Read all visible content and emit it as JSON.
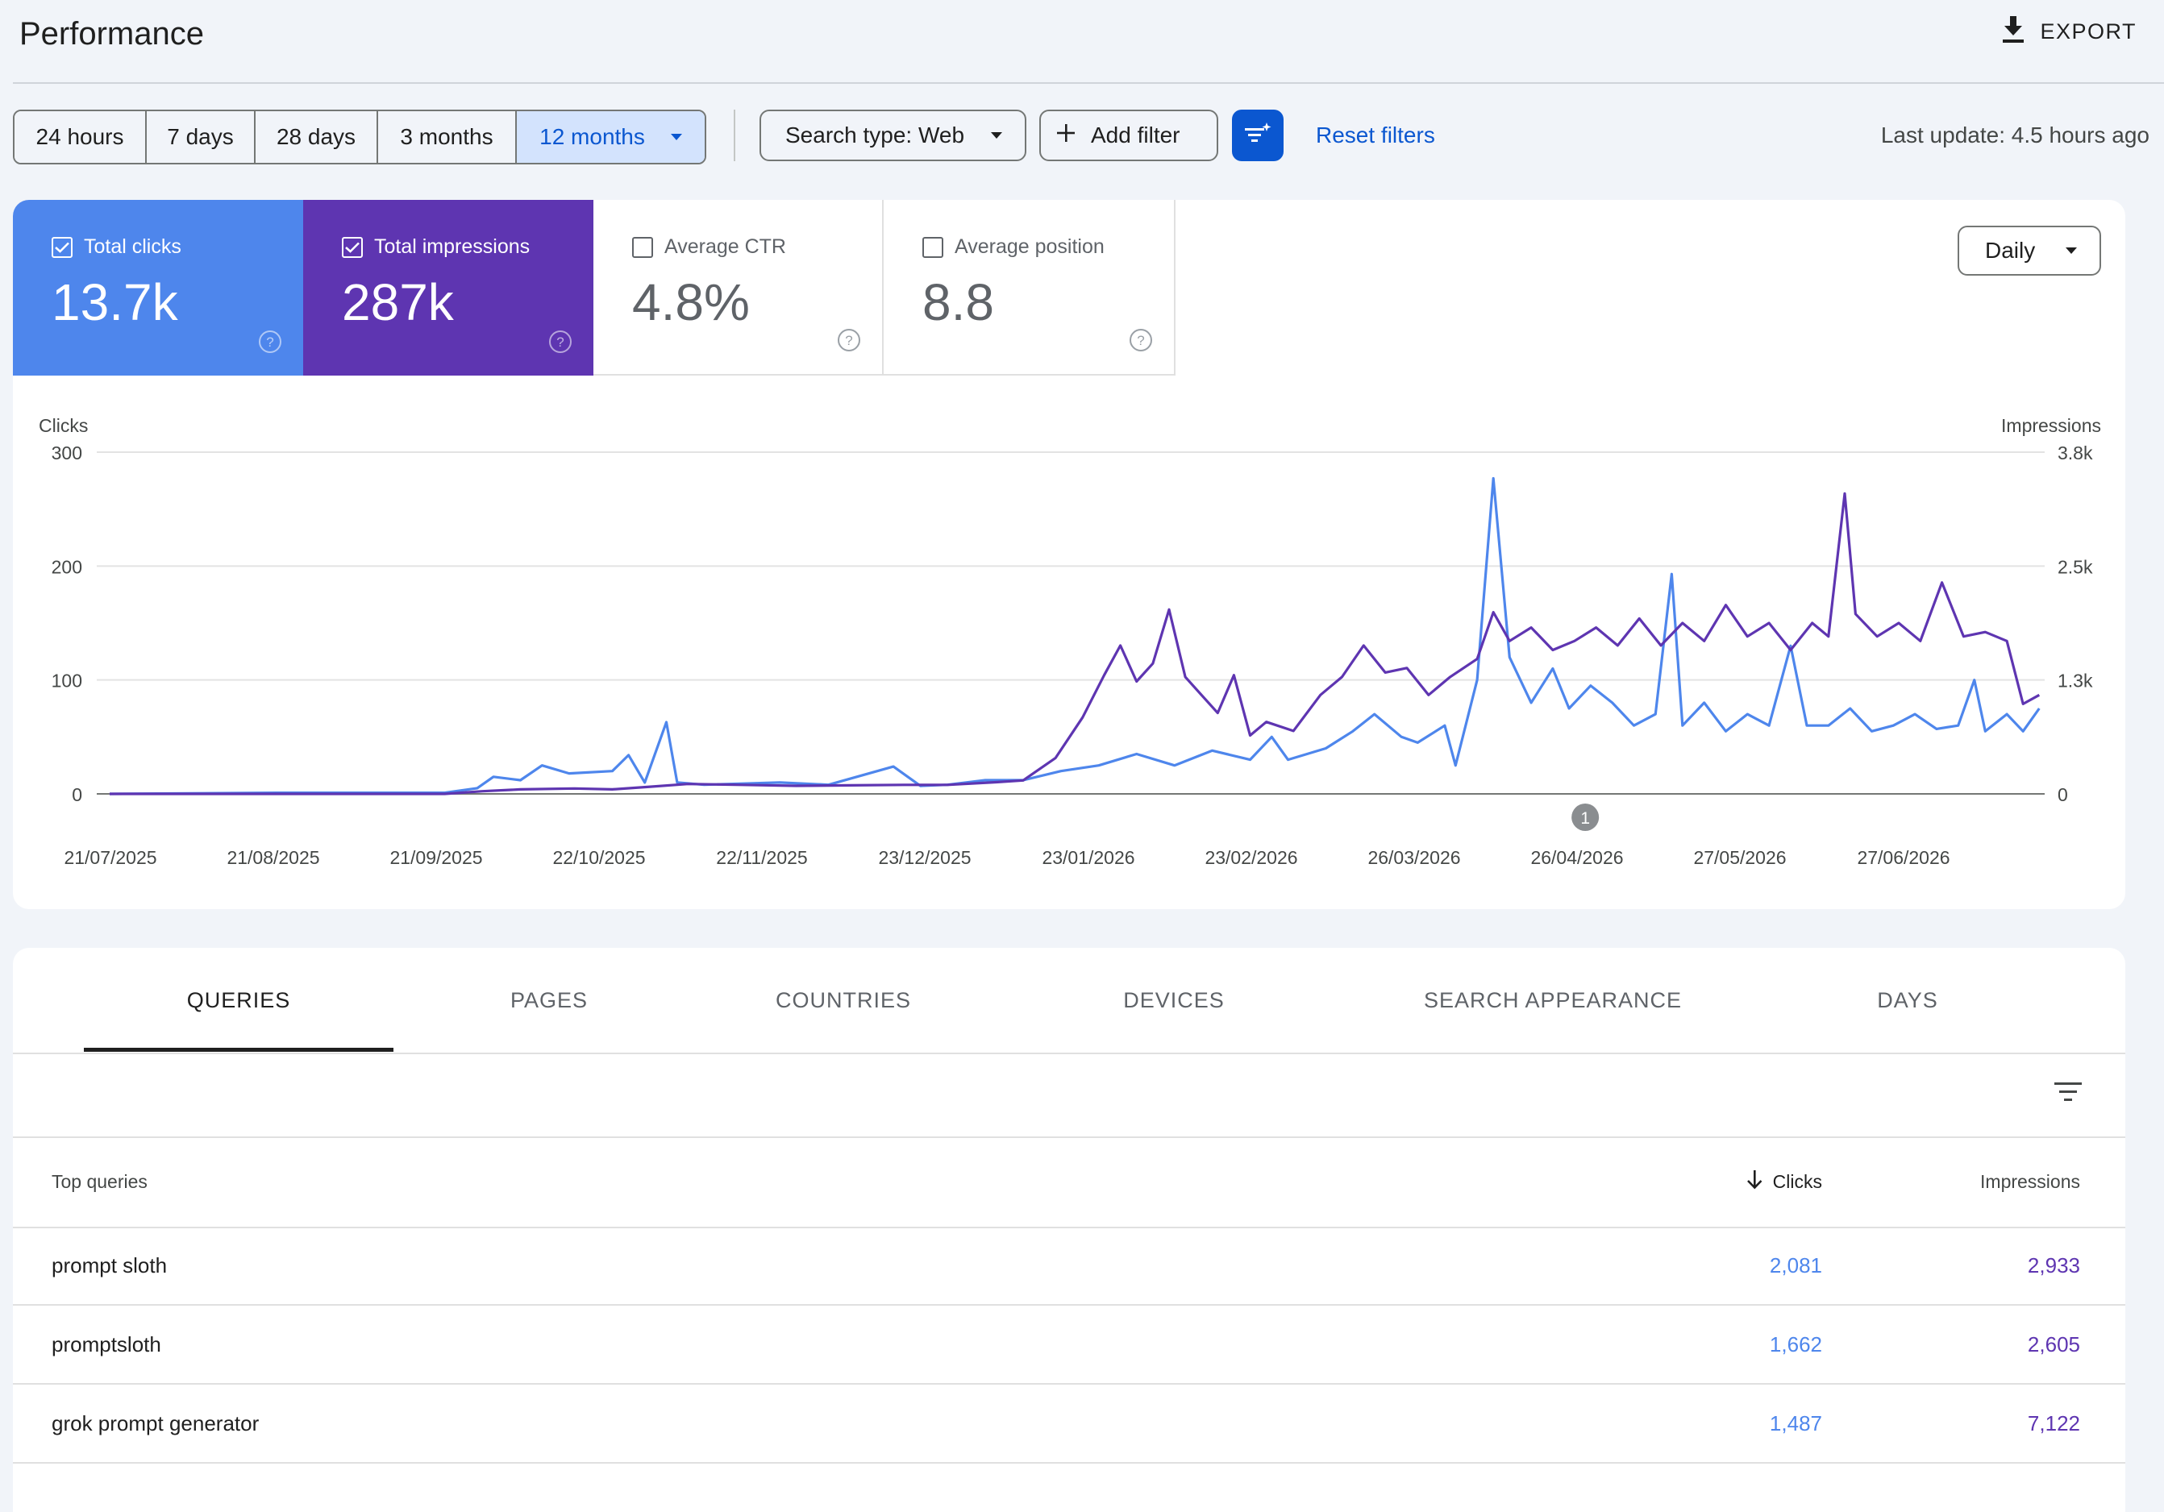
{
  "header": {
    "title": "Performance",
    "export_label": "EXPORT"
  },
  "filters": {
    "ranges": [
      {
        "label": "24 hours",
        "selected": false
      },
      {
        "label": "7 days",
        "selected": false
      },
      {
        "label": "28 days",
        "selected": false
      },
      {
        "label": "3 months",
        "selected": false
      },
      {
        "label": "12 months",
        "selected": true
      }
    ],
    "search_type": "Search type: Web",
    "add_filter": "Add filter",
    "reset": "Reset filters",
    "last_update": "Last update: 4.5 hours ago"
  },
  "metrics": {
    "clicks": {
      "label": "Total clicks",
      "value": "13.7k",
      "checked": true
    },
    "impressions": {
      "label": "Total impressions",
      "value": "287k",
      "checked": true
    },
    "ctr": {
      "label": "Average CTR",
      "value": "4.8%",
      "checked": false
    },
    "position": {
      "label": "Average position",
      "value": "8.8",
      "checked": false
    }
  },
  "granularity": "Daily",
  "colors": {
    "clicks": "#4e86ec",
    "impressions": "#5e35b1",
    "accent": "#0b57d0"
  },
  "chart_data": {
    "type": "line",
    "left_axis_label": "Clicks",
    "right_axis_label": "Impressions",
    "left_ticks": [
      "300",
      "200",
      "100",
      "0"
    ],
    "right_ticks": [
      "3.8k",
      "2.5k",
      "1.3k",
      "0"
    ],
    "ylim_left": [
      0,
      300
    ],
    "ylim_right": [
      0,
      3800
    ],
    "x_labels": [
      "21/07/2025",
      "21/08/2025",
      "21/09/2025",
      "22/10/2025",
      "22/11/2025",
      "23/12/2025",
      "23/01/2026",
      "23/02/2026",
      "26/03/2026",
      "26/04/2026",
      "27/05/2026",
      "27/06/2026"
    ],
    "annotation_label": "1",
    "annotation_date": "2026-04-20",
    "grid": true,
    "series": [
      {
        "name": "Clicks",
        "axis": "left",
        "points": [
          [
            "2025-07-21",
            0
          ],
          [
            "2025-08-21",
            1
          ],
          [
            "2025-09-21",
            1
          ],
          [
            "2025-09-27",
            5
          ],
          [
            "2025-09-30",
            15
          ],
          [
            "2025-10-05",
            12
          ],
          [
            "2025-10-09",
            25
          ],
          [
            "2025-10-14",
            18
          ],
          [
            "2025-10-22",
            20
          ],
          [
            "2025-10-25",
            34
          ],
          [
            "2025-10-28",
            10
          ],
          [
            "2025-11-01",
            63
          ],
          [
            "2025-11-03",
            10
          ],
          [
            "2025-11-08",
            8
          ],
          [
            "2025-11-22",
            10
          ],
          [
            "2025-12-01",
            8
          ],
          [
            "2025-12-13",
            24
          ],
          [
            "2025-12-18",
            7
          ],
          [
            "2025-12-23",
            8
          ],
          [
            "2025-12-30",
            12
          ],
          [
            "2026-01-06",
            12
          ],
          [
            "2026-01-13",
            20
          ],
          [
            "2026-01-20",
            25
          ],
          [
            "2026-01-27",
            35
          ],
          [
            "2026-02-03",
            25
          ],
          [
            "2026-02-10",
            38
          ],
          [
            "2026-02-17",
            30
          ],
          [
            "2026-02-21",
            50
          ],
          [
            "2026-02-24",
            30
          ],
          [
            "2026-03-03",
            40
          ],
          [
            "2026-03-08",
            55
          ],
          [
            "2026-03-12",
            70
          ],
          [
            "2026-03-17",
            50
          ],
          [
            "2026-03-20",
            45
          ],
          [
            "2026-03-25",
            60
          ],
          [
            "2026-03-27",
            25
          ],
          [
            "2026-03-31",
            100
          ],
          [
            "2026-04-03",
            277
          ],
          [
            "2026-04-06",
            120
          ],
          [
            "2026-04-10",
            80
          ],
          [
            "2026-04-14",
            110
          ],
          [
            "2026-04-17",
            75
          ],
          [
            "2026-04-21",
            95
          ],
          [
            "2026-04-25",
            80
          ],
          [
            "2026-04-29",
            60
          ],
          [
            "2026-05-03",
            70
          ],
          [
            "2026-05-06",
            193
          ],
          [
            "2026-05-08",
            60
          ],
          [
            "2026-05-12",
            80
          ],
          [
            "2026-05-16",
            55
          ],
          [
            "2026-05-20",
            70
          ],
          [
            "2026-05-24",
            60
          ],
          [
            "2026-05-28",
            130
          ],
          [
            "2026-05-31",
            60
          ],
          [
            "2026-06-04",
            60
          ],
          [
            "2026-06-08",
            75
          ],
          [
            "2026-06-12",
            55
          ],
          [
            "2026-06-16",
            60
          ],
          [
            "2026-06-20",
            70
          ],
          [
            "2026-06-24",
            57
          ],
          [
            "2026-06-28",
            60
          ],
          [
            "2026-07-01",
            100
          ],
          [
            "2026-07-03",
            55
          ],
          [
            "2026-07-07",
            70
          ],
          [
            "2026-07-10",
            55
          ],
          [
            "2026-07-13",
            75
          ]
        ]
      },
      {
        "name": "Impressions",
        "axis": "right",
        "points": [
          [
            "2025-07-21",
            0
          ],
          [
            "2025-08-21",
            0
          ],
          [
            "2025-09-21",
            0
          ],
          [
            "2025-09-28",
            30
          ],
          [
            "2025-10-05",
            50
          ],
          [
            "2025-10-15",
            60
          ],
          [
            "2025-10-22",
            50
          ],
          [
            "2025-10-29",
            80
          ],
          [
            "2025-11-05",
            110
          ],
          [
            "2025-11-15",
            100
          ],
          [
            "2025-11-25",
            90
          ],
          [
            "2025-12-05",
            95
          ],
          [
            "2025-12-15",
            100
          ],
          [
            "2025-12-23",
            100
          ],
          [
            "2026-01-01",
            130
          ],
          [
            "2026-01-06",
            150
          ],
          [
            "2026-01-12",
            400
          ],
          [
            "2026-01-17",
            850
          ],
          [
            "2026-01-21",
            1320
          ],
          [
            "2026-01-24",
            1650
          ],
          [
            "2026-01-27",
            1250
          ],
          [
            "2026-01-30",
            1450
          ],
          [
            "2026-02-02",
            2050
          ],
          [
            "2026-02-05",
            1300
          ],
          [
            "2026-02-08",
            1100
          ],
          [
            "2026-02-11",
            900
          ],
          [
            "2026-02-14",
            1320
          ],
          [
            "2026-02-17",
            650
          ],
          [
            "2026-02-20",
            800
          ],
          [
            "2026-02-25",
            700
          ],
          [
            "2026-03-02",
            1100
          ],
          [
            "2026-03-06",
            1300
          ],
          [
            "2026-03-10",
            1650
          ],
          [
            "2026-03-14",
            1350
          ],
          [
            "2026-03-18",
            1400
          ],
          [
            "2026-03-22",
            1100
          ],
          [
            "2026-03-26",
            1300
          ],
          [
            "2026-03-31",
            1500
          ],
          [
            "2026-04-03",
            2020
          ],
          [
            "2026-04-06",
            1700
          ],
          [
            "2026-04-10",
            1850
          ],
          [
            "2026-04-14",
            1600
          ],
          [
            "2026-04-18",
            1700
          ],
          [
            "2026-04-22",
            1850
          ],
          [
            "2026-04-26",
            1650
          ],
          [
            "2026-04-30",
            1950
          ],
          [
            "2026-05-04",
            1650
          ],
          [
            "2026-05-08",
            1900
          ],
          [
            "2026-05-12",
            1700
          ],
          [
            "2026-05-16",
            2100
          ],
          [
            "2026-05-20",
            1750
          ],
          [
            "2026-05-24",
            1900
          ],
          [
            "2026-05-28",
            1600
          ],
          [
            "2026-06-01",
            1900
          ],
          [
            "2026-06-04",
            1750
          ],
          [
            "2026-06-07",
            3340
          ],
          [
            "2026-06-09",
            2000
          ],
          [
            "2026-06-13",
            1750
          ],
          [
            "2026-06-17",
            1900
          ],
          [
            "2026-06-21",
            1700
          ],
          [
            "2026-06-25",
            2350
          ],
          [
            "2026-06-29",
            1750
          ],
          [
            "2026-07-03",
            1800
          ],
          [
            "2026-07-07",
            1700
          ],
          [
            "2026-07-10",
            1000
          ],
          [
            "2026-07-13",
            1100
          ]
        ]
      }
    ]
  },
  "tabs": [
    "QUERIES",
    "PAGES",
    "COUNTRIES",
    "DEVICES",
    "SEARCH APPEARANCE",
    "DAYS"
  ],
  "table": {
    "headers": {
      "query": "Top queries",
      "clicks": "Clicks",
      "impressions": "Impressions"
    },
    "rows": [
      {
        "query": "prompt sloth",
        "clicks": "2,081",
        "impressions": "2,933"
      },
      {
        "query": "promptsloth",
        "clicks": "1,662",
        "impressions": "2,605"
      },
      {
        "query": "grok prompt generator",
        "clicks": "1,487",
        "impressions": "7,122"
      }
    ]
  }
}
